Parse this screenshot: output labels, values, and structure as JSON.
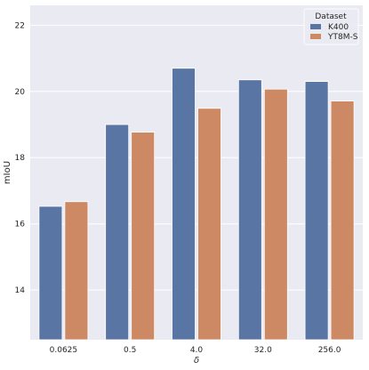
{
  "chart_data": {
    "type": "bar",
    "xlabel": "δ",
    "ylabel": "mIoU",
    "categories": [
      "0.0625",
      "0.5",
      "4.0",
      "32.0",
      "256.0"
    ],
    "ylim": [
      12.5,
      22.6
    ],
    "yticks": [
      14,
      16,
      18,
      20,
      22
    ],
    "grid": true,
    "legend": {
      "title": "Dataset",
      "placement": "top-right"
    },
    "series": [
      {
        "name": "K400",
        "color": "#5975a4",
        "values": [
          16.53,
          19.0,
          20.7,
          20.35,
          20.3
        ]
      },
      {
        "name": "YT8M-S",
        "color": "#cc8963",
        "values": [
          16.67,
          18.77,
          19.49,
          20.07,
          19.71
        ]
      }
    ],
    "background": "#eaeaf2"
  }
}
